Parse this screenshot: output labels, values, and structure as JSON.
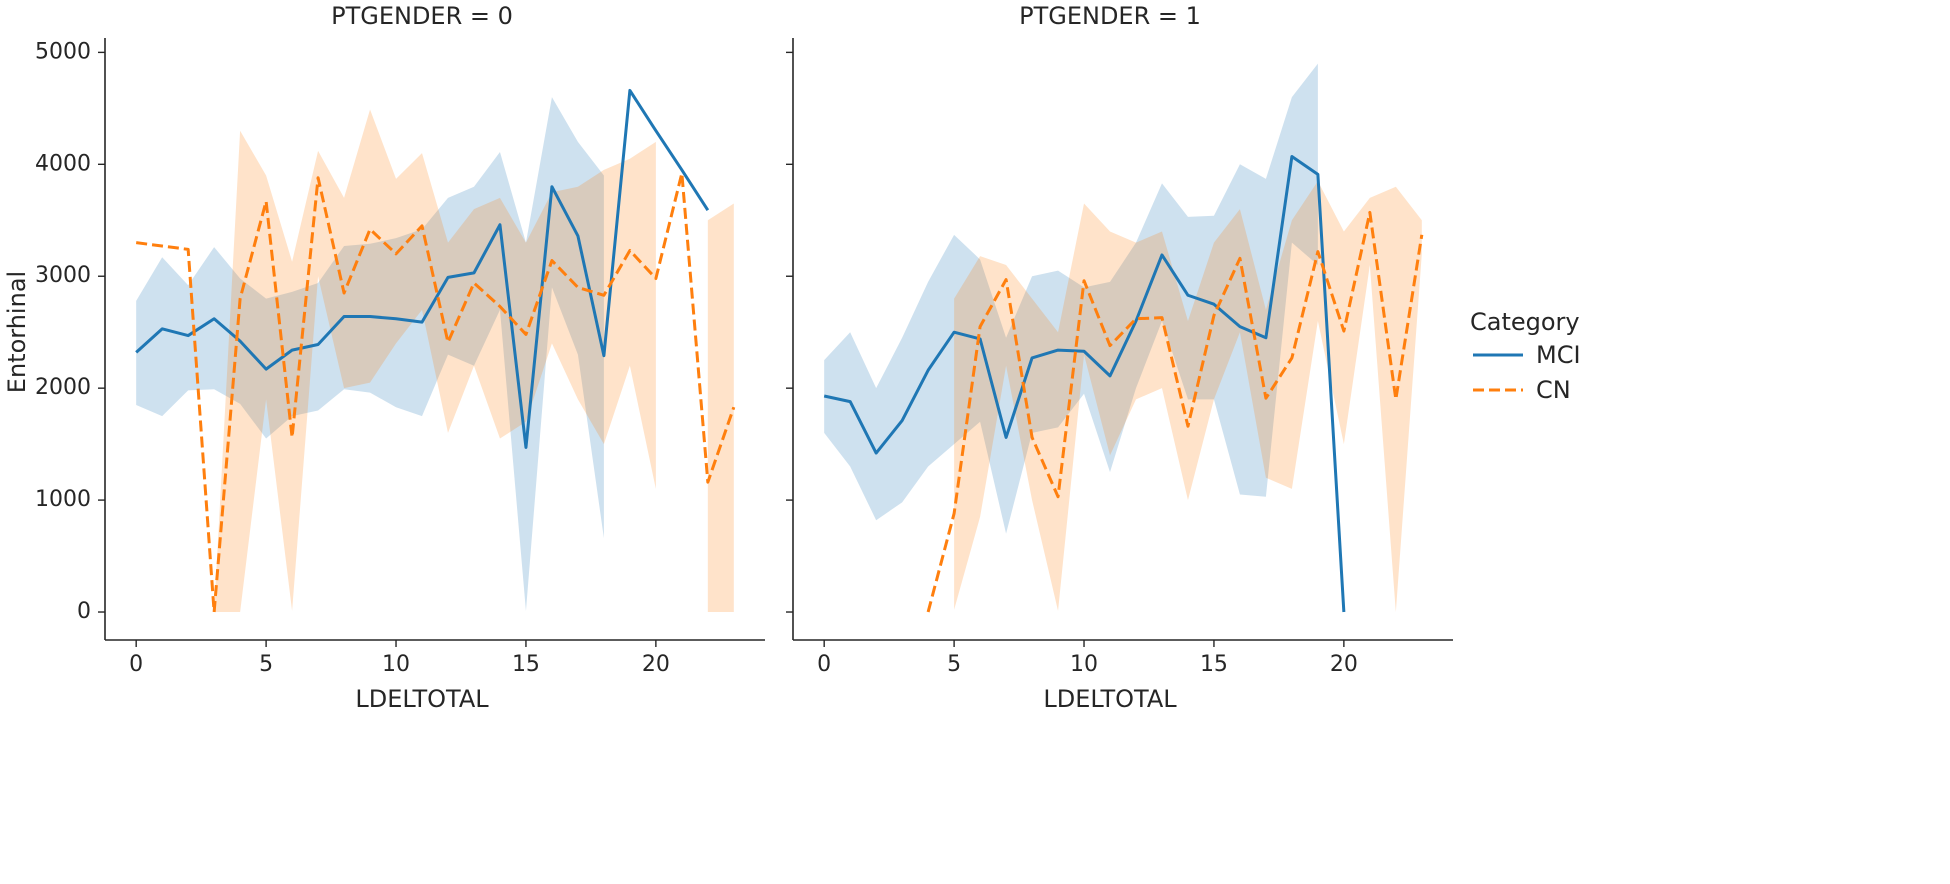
{
  "chart_data": {
    "type": "line",
    "ylabel": "Entorhinal",
    "legend": {
      "title": "Category",
      "placement": "right",
      "entries": [
        {
          "name": "MCI",
          "color": "#1f77b4",
          "style": "solid"
        },
        {
          "name": "CN",
          "color": "#ff7f0e",
          "style": "dashed"
        }
      ]
    },
    "facets": [
      {
        "title": "PTGENDER = 0",
        "xlabel": "LDELTOTAL",
        "xticks": [
          "0",
          "5",
          "10",
          "15",
          "20"
        ],
        "xtick_values": [
          0,
          5,
          10,
          15,
          20
        ],
        "yticks": [
          "0",
          "1000",
          "2000",
          "3000",
          "4000",
          "5000"
        ],
        "ytick_values": [
          0,
          1000,
          2000,
          3000,
          4000,
          5000
        ],
        "xlim": [
          -1.2,
          24.2
        ],
        "ylim": [
          -250,
          5200
        ],
        "series": [
          {
            "name": "MCI",
            "x": [
              0,
              1,
              2,
              3,
              4,
              5,
              6,
              7,
              8,
              9,
              10,
              11,
              12,
              13,
              14,
              15,
              16,
              17,
              18,
              19,
              20,
              21,
              22
            ],
            "y": [
              2320,
              2530,
              2470,
              2620,
              2420,
              2170,
              2340,
              2390,
              2640,
              2640,
              2620,
              2590,
              2990,
              3030,
              3460,
              1470,
              3800,
              3360,
              2290,
              4660,
              4300,
              3950,
              3590
            ],
            "lower": [
              1850,
              1750,
              1980,
              1990,
              1860,
              1550,
              1750,
              1800,
              1990,
              1960,
              1830,
              1750,
              2300,
              2200,
              2700,
              10,
              2900,
              2300,
              660,
              null,
              null,
              null,
              null
            ],
            "upper": [
              2780,
              3170,
              2920,
              3260,
              2980,
              2800,
              2860,
              2940,
              3270,
              3290,
              3340,
              3420,
              3700,
              3800,
              4110,
              3300,
              4600,
              4200,
              3900,
              null,
              null,
              null,
              null
            ]
          },
          {
            "name": "CN",
            "x": [
              0,
              2,
              3,
              4,
              5,
              6,
              7,
              8,
              9,
              10,
              11,
              12,
              13,
              14,
              15,
              16,
              17,
              18,
              19,
              20,
              21,
              22,
              23
            ],
            "y": [
              3300,
              3240,
              0,
              2800,
              3670,
              1560,
              3880,
              2850,
              3420,
              3200,
              3450,
              2410,
              2940,
              2730,
              2480,
              3140,
              2900,
              2830,
              3230,
              2980,
              3920,
              1160,
              1830
            ],
            "lower": [
              null,
              null,
              0,
              0,
              1900,
              10,
              3000,
              2000,
              2050,
              2400,
              2700,
              1600,
              2200,
              1550,
              1700,
              2400,
              1900,
              1500,
              2200,
              1100,
              null,
              0,
              0
            ],
            "upper": [
              null,
              null,
              0,
              4300,
              3900,
              3130,
              4120,
              3700,
              4490,
              3870,
              4100,
              3300,
              3600,
              3700,
              3300,
              3750,
              3800,
              3950,
              4050,
              4200,
              null,
              3500,
              3650
            ]
          }
        ]
      },
      {
        "title": "PTGENDER = 1",
        "xlabel": "LDELTOTAL",
        "xticks": [
          "0",
          "5",
          "10",
          "15",
          "20"
        ],
        "xtick_values": [
          0,
          5,
          10,
          15,
          20
        ],
        "xlim": [
          -1.2,
          24.2
        ],
        "ylim": [
          -250,
          5200
        ],
        "series": [
          {
            "name": "MCI",
            "x": [
              0,
              1,
              2,
              3,
              4,
              5,
              6,
              7,
              8,
              9,
              10,
              11,
              12,
              13,
              14,
              15,
              16,
              17,
              18,
              19,
              20
            ],
            "y": [
              1930,
              1880,
              1420,
              1710,
              2160,
              2500,
              2440,
              1560,
              2270,
              2340,
              2330,
              2110,
              2600,
              3190,
              2830,
              2750,
              2550,
              2450,
              4070,
              3910,
              0
            ],
            "lower": [
              1600,
              1300,
              820,
              980,
              1300,
              1500,
              1700,
              700,
              1600,
              1650,
              1950,
              1250,
              2000,
              2600,
              1900,
              1900,
              1050,
              1030,
              3300,
              3100,
              null
            ],
            "upper": [
              2250,
              2500,
              2000,
              2450,
              2950,
              3370,
              3150,
              2450,
              3000,
              3050,
              2900,
              2950,
              3300,
              3830,
              3530,
              3540,
              4000,
              3870,
              4600,
              4900,
              null
            ]
          },
          {
            "name": "CN",
            "x": [
              4,
              5,
              6,
              7,
              8,
              9,
              10,
              11,
              12,
              13,
              14,
              15,
              16,
              17,
              18,
              19,
              20,
              21,
              22,
              23
            ],
            "y": [
              0,
              880,
              2550,
              2970,
              1560,
              1030,
              2960,
              2380,
              2620,
              2630,
              1660,
              2650,
              3160,
              1910,
              2270,
              3220,
              2510,
              3570,
              1900,
              3370
            ],
            "lower": [
              null,
              20,
              850,
              2200,
              1000,
              10,
              2300,
              1400,
              1900,
              2000,
              1000,
              1900,
              2500,
              1200,
              1100,
              2600,
              1500,
              3100,
              0,
              3200
            ],
            "upper": [
              null,
              2800,
              3180,
              3100,
              2800,
              2500,
              3650,
              3400,
              3300,
              3400,
              2600,
              3300,
              3600,
              2700,
              3500,
              3850,
              3400,
              3700,
              3800,
              3500
            ]
          }
        ]
      }
    ]
  }
}
